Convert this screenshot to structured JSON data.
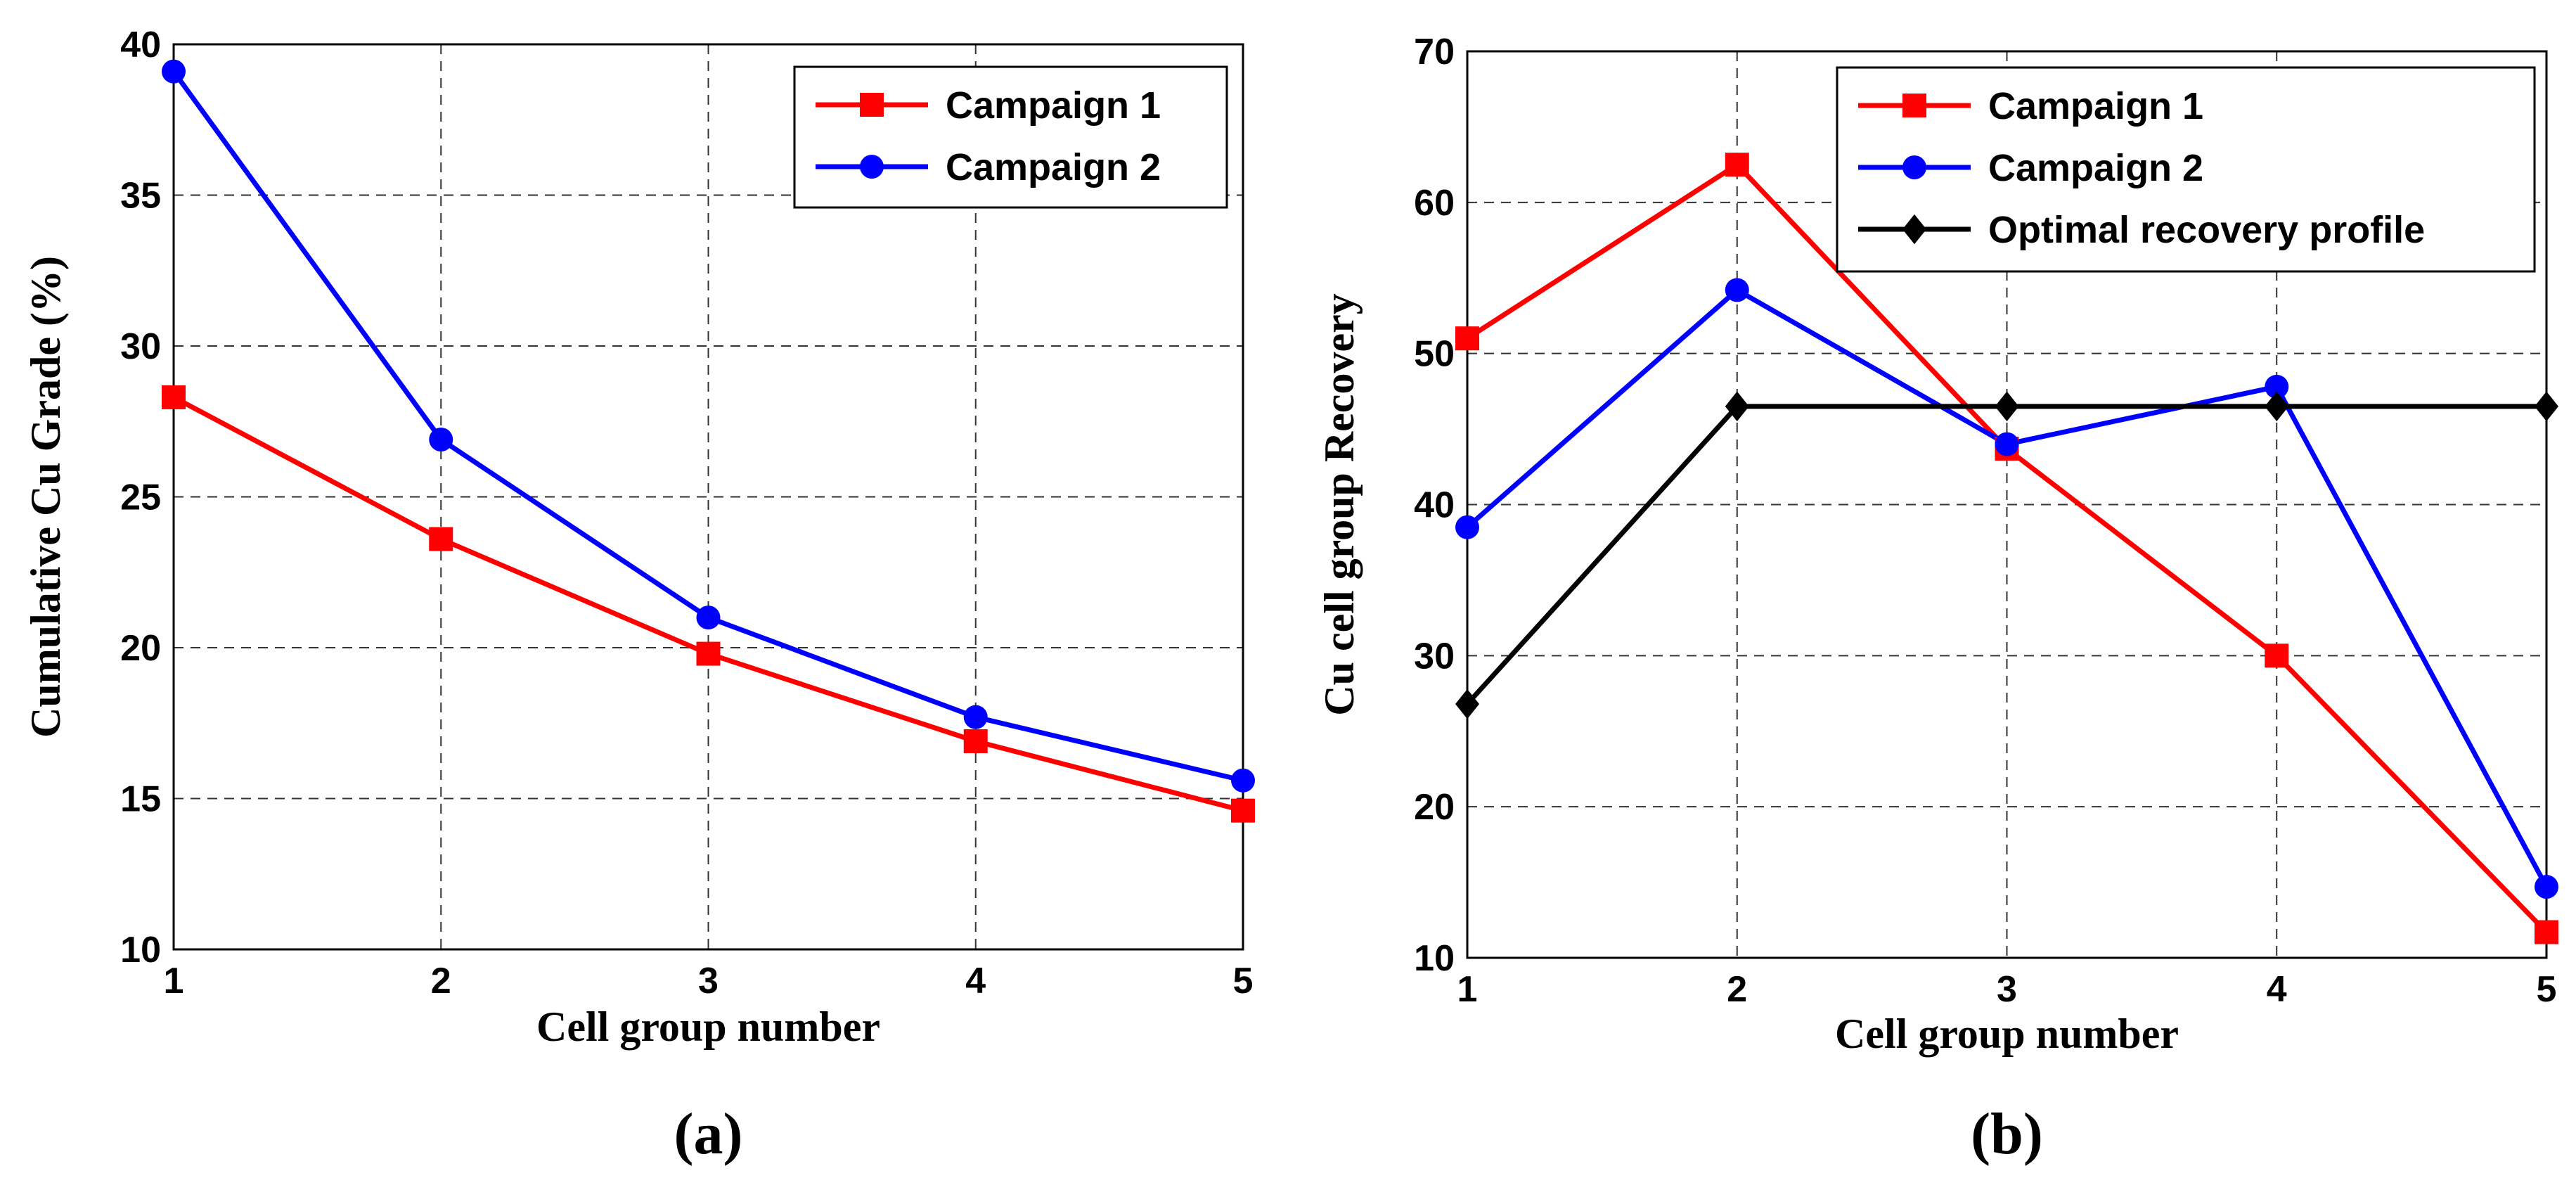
{
  "chart_data": [
    {
      "type": "line",
      "panel_label": "(a)",
      "title": "",
      "xlabel": "Cell group number",
      "ylabel": "Cumulative Cu Grade (%)",
      "x": [
        1,
        2,
        3,
        4,
        5
      ],
      "xlim": [
        1,
        5
      ],
      "ylim": [
        10,
        40
      ],
      "yticks": [
        10,
        15,
        20,
        25,
        30,
        35,
        40
      ],
      "grid": true,
      "legend_position": "top-right",
      "series": [
        {
          "name": "Campaign 1",
          "color": "#ff0000",
          "marker": "square",
          "values": [
            28.3,
            23.6,
            19.8,
            16.9,
            14.6
          ]
        },
        {
          "name": "Campaign 2",
          "color": "#0000ff",
          "marker": "circle",
          "values": [
            39.1,
            26.9,
            21.0,
            17.7,
            15.6
          ]
        }
      ]
    },
    {
      "type": "line",
      "panel_label": "(b)",
      "title": "",
      "xlabel": "Cell group number",
      "ylabel": "Cu cell group Recovery",
      "x": [
        1,
        2,
        3,
        4,
        5
      ],
      "xlim": [
        1,
        5
      ],
      "ylim": [
        10,
        70
      ],
      "yticks": [
        10,
        20,
        30,
        40,
        50,
        60,
        70
      ],
      "grid": true,
      "legend_position": "top-right",
      "series": [
        {
          "name": "Campaign 1",
          "color": "#ff0000",
          "marker": "square",
          "values": [
            51.0,
            62.5,
            43.7,
            30.0,
            11.7
          ]
        },
        {
          "name": "Campaign 2",
          "color": "#0000ff",
          "marker": "circle",
          "values": [
            38.5,
            54.2,
            44.0,
            47.8,
            14.7
          ]
        },
        {
          "name": "Optimal recovery profile",
          "color": "#000000",
          "marker": "diamond",
          "values": [
            26.8,
            46.5,
            46.5,
            46.5,
            46.5
          ]
        }
      ]
    }
  ]
}
